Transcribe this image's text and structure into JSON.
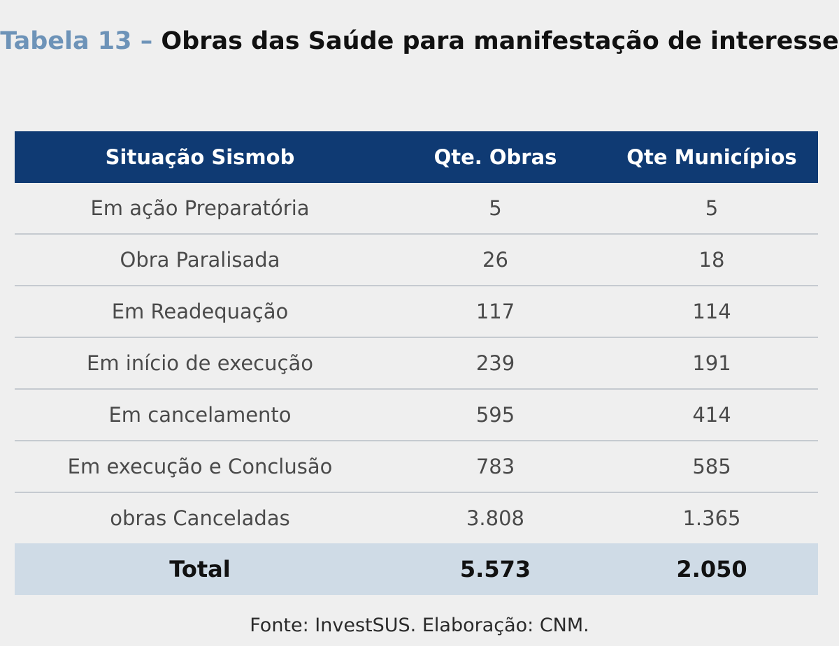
{
  "title": {
    "label": "Tabela 13 –",
    "text": "Obras das Saúde para manifestação de interesse"
  },
  "table": {
    "headers": [
      "Situação Sismob",
      "Qte. Obras",
      "Qte Municípios"
    ],
    "rows": [
      [
        "Em ação Preparatória",
        "5",
        "5"
      ],
      [
        "Obra Paralisada",
        "26",
        "18"
      ],
      [
        "Em Readequação",
        "117",
        "114"
      ],
      [
        "Em início de execução",
        "239",
        "191"
      ],
      [
        "Em cancelamento",
        "595",
        "414"
      ],
      [
        "Em execução e Conclusão",
        "783",
        "585"
      ],
      [
        "obras Canceladas",
        "3.808",
        "1.365"
      ]
    ],
    "total": [
      "Total",
      "5.573",
      "2.050"
    ]
  },
  "source": "Fonte: InvestSUS. Elaboração: CNM."
}
